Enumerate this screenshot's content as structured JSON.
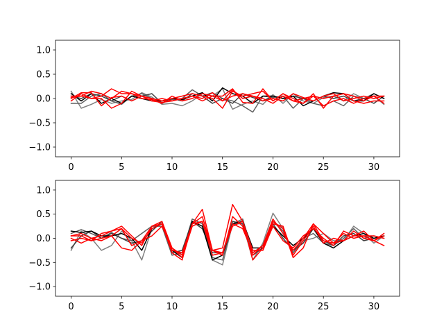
{
  "chart_data": [
    {
      "type": "line",
      "title": "",
      "xlabel": "",
      "ylabel": "",
      "xlim": [
        -1.55,
        32.55
      ],
      "ylim": [
        -1.2,
        1.2
      ],
      "xticks": [
        0,
        5,
        10,
        15,
        20,
        25,
        30
      ],
      "yticks": [
        -1.0,
        -0.5,
        0.0,
        0.5,
        1.0
      ],
      "xtick_labels": [
        "0",
        "5",
        "10",
        "15",
        "20",
        "25",
        "30"
      ],
      "ytick_labels": [
        "−1.0",
        "−0.5",
        "0.0",
        "0.5",
        "1.0"
      ],
      "grid": false,
      "x": [
        0,
        1,
        2,
        3,
        4,
        5,
        6,
        7,
        8,
        9,
        10,
        11,
        12,
        13,
        14,
        15,
        16,
        17,
        18,
        19,
        20,
        21,
        22,
        23,
        24,
        25,
        26,
        27,
        28,
        29,
        30,
        31
      ],
      "series": [
        {
          "color": "#808080",
          "values": [
            0.15,
            -0.2,
            -0.12,
            -0.02,
            -0.1,
            -0.05,
            -0.02,
            0.12,
            0.03,
            -0.12,
            -0.1,
            -0.15,
            -0.05,
            0.1,
            0.05,
            0.2,
            -0.22,
            -0.12,
            -0.05,
            -0.12,
            0.08,
            -0.1,
            0.1,
            -0.05,
            -0.1,
            0.02,
            0.05,
            -0.05,
            0.1,
            0.0,
            0.05,
            -0.12
          ]
        },
        {
          "color": "#606060",
          "values": [
            -0.1,
            -0.1,
            0.05,
            0.1,
            -0.05,
            -0.12,
            0.05,
            0.1,
            0.0,
            -0.05,
            -0.02,
            0.0,
            0.18,
            0.05,
            0.12,
            0.0,
            -0.05,
            -0.15,
            -0.28,
            0.05,
            0.02,
            0.05,
            -0.2,
            0.0,
            -0.1,
            -0.15,
            -0.05,
            -0.15,
            0.05,
            0.0,
            0.1,
            0.0
          ]
        },
        {
          "color": "#404040",
          "values": [
            0.05,
            0.0,
            0.1,
            0.05,
            -0.05,
            0.05,
            -0.05,
            0.05,
            0.1,
            -0.1,
            0.0,
            -0.05,
            0.1,
            0.05,
            -0.1,
            0.0,
            -0.1,
            0.1,
            0.02,
            -0.05,
            0.05,
            0.0,
            0.05,
            0.0,
            -0.05,
            0.05,
            0.0,
            0.05,
            -0.05,
            0.0,
            -0.1,
            0.05
          ]
        },
        {
          "color": "#000000",
          "values": [
            0.1,
            -0.05,
            0.1,
            -0.1,
            0.0,
            -0.1,
            0.05,
            0.0,
            -0.05,
            -0.05,
            0.0,
            -0.02,
            0.05,
            0.12,
            -0.05,
            0.22,
            0.1,
            0.05,
            -0.1,
            0.05,
            0.05,
            0.0,
            0.05,
            -0.15,
            -0.05,
            0.05,
            0.12,
            0.1,
            -0.05,
            -0.05,
            0.1,
            0.0
          ]
        },
        {
          "color": "#ff0000",
          "values": [
            0.02,
            0.05,
            0.15,
            0.1,
            0.0,
            0.15,
            0.1,
            0.05,
            0.0,
            -0.05,
            0.0,
            0.05,
            0.1,
            0.05,
            0.0,
            -0.2,
            0.15,
            0.05,
            0.1,
            0.15,
            -0.05,
            0.1,
            0.0,
            -0.1,
            0.05,
            0.0,
            0.05,
            0.1,
            0.05,
            -0.05,
            0.05,
            -0.1
          ]
        },
        {
          "color": "#ff0000",
          "values": [
            0.0,
            0.12,
            0.12,
            -0.15,
            0.02,
            0.05,
            -0.05,
            0.05,
            -0.05,
            -0.08,
            -0.05,
            0.0,
            0.05,
            0.0,
            0.12,
            -0.05,
            0.18,
            0.0,
            0.05,
            0.0,
            -0.1,
            0.05,
            -0.05,
            0.0,
            0.05,
            -0.15,
            -0.05,
            0.0,
            -0.1,
            0.0,
            0.05,
            0.05
          ]
        },
        {
          "color": "#ff0000",
          "values": [
            -0.05,
            0.1,
            0.0,
            0.05,
            0.2,
            0.1,
            0.1,
            0.0,
            -0.02,
            -0.1,
            0.05,
            -0.05,
            0.0,
            0.1,
            0.05,
            -0.05,
            0.05,
            0.1,
            0.05,
            -0.05,
            0.0,
            -0.05,
            0.1,
            0.02,
            -0.05,
            0.05,
            0.1,
            -0.05,
            0.0,
            0.05,
            0.0,
            0.05
          ]
        },
        {
          "color": "#ff0000",
          "values": [
            0.05,
            0.05,
            0.0,
            0.0,
            -0.2,
            -0.1,
            0.15,
            0.05,
            -0.05,
            0.0,
            -0.05,
            0.0,
            0.05,
            -0.05,
            0.05,
            0.05,
            0.2,
            -0.08,
            -0.1,
            0.2,
            -0.05,
            0.1,
            -0.05,
            -0.1,
            0.1,
            -0.2,
            0.05,
            0.1,
            -0.05,
            -0.1,
            -0.05,
            -0.05
          ]
        }
      ]
    },
    {
      "type": "line",
      "title": "",
      "xlabel": "",
      "ylabel": "",
      "xlim": [
        -1.55,
        32.55
      ],
      "ylim": [
        -1.2,
        1.2
      ],
      "xticks": [
        0,
        5,
        10,
        15,
        20,
        25,
        30
      ],
      "yticks": [
        -1.0,
        -0.5,
        0.0,
        0.5,
        1.0
      ],
      "xtick_labels": [
        "0",
        "5",
        "10",
        "15",
        "20",
        "25",
        "30"
      ],
      "ytick_labels": [
        "−1.0",
        "−0.5",
        "0.0",
        "0.5",
        "1.0"
      ],
      "grid": false,
      "x": [
        0,
        1,
        2,
        3,
        4,
        5,
        6,
        7,
        8,
        9,
        10,
        11,
        12,
        13,
        14,
        15,
        16,
        17,
        18,
        19,
        20,
        21,
        22,
        23,
        24,
        25,
        26,
        27,
        28,
        29,
        30,
        31
      ],
      "series": [
        {
          "color": "#808080",
          "values": [
            -0.25,
            0.15,
            0.0,
            -0.25,
            -0.15,
            0.15,
            -0.05,
            -0.45,
            0.2,
            0.3,
            -0.25,
            -0.3,
            0.25,
            0.35,
            -0.45,
            -0.55,
            0.3,
            0.3,
            -0.45,
            -0.1,
            0.52,
            0.2,
            -0.3,
            -0.05,
            0.0,
            0.1,
            -0.05,
            -0.05,
            0.25,
            0.1,
            -0.1,
            0.05
          ]
        },
        {
          "color": "#606060",
          "values": [
            0.1,
            0.18,
            0.1,
            0.0,
            0.12,
            0.0,
            -0.05,
            0.1,
            0.25,
            0.25,
            -0.35,
            -0.3,
            0.4,
            0.3,
            -0.4,
            -0.45,
            0.3,
            0.4,
            -0.3,
            -0.15,
            0.35,
            0.15,
            -0.3,
            0.0,
            0.1,
            -0.1,
            -0.15,
            0.0,
            0.2,
            0.0,
            0.05,
            0.0
          ]
        },
        {
          "color": "#404040",
          "values": [
            -0.2,
            0.05,
            0.15,
            0.0,
            0.1,
            0.0,
            -0.1,
            -0.05,
            0.15,
            0.35,
            -0.3,
            -0.25,
            0.35,
            0.2,
            -0.3,
            -0.3,
            0.35,
            0.3,
            -0.35,
            -0.2,
            0.3,
            0.0,
            -0.25,
            -0.1,
            0.2,
            -0.05,
            -0.15,
            0.05,
            0.1,
            -0.05,
            0.0,
            0.05
          ]
        },
        {
          "color": "#000000",
          "values": [
            0.15,
            0.12,
            0.15,
            0.05,
            0.05,
            0.1,
            0.0,
            -0.25,
            0.2,
            0.3,
            -0.25,
            -0.4,
            0.35,
            0.25,
            -0.45,
            -0.35,
            0.3,
            0.35,
            -0.2,
            -0.2,
            0.25,
            0.05,
            -0.15,
            0.0,
            0.2,
            -0.1,
            -0.2,
            -0.05,
            0.05,
            0.1,
            0.0,
            0.05
          ]
        },
        {
          "color": "#ff0000",
          "values": [
            0.0,
            -0.1,
            0.0,
            0.05,
            0.15,
            0.2,
            0.0,
            -0.1,
            0.2,
            0.3,
            -0.3,
            -0.45,
            0.3,
            0.45,
            -0.25,
            -0.2,
            0.7,
            0.35,
            -0.45,
            -0.2,
            0.3,
            0.25,
            -0.35,
            -0.05,
            0.25,
            -0.1,
            0.0,
            -0.05,
            0.15,
            0.0,
            -0.05,
            -0.15
          ]
        },
        {
          "color": "#ff0000",
          "values": [
            0.05,
            0.05,
            -0.05,
            0.1,
            0.15,
            0.25,
            0.05,
            -0.15,
            0.25,
            0.3,
            -0.25,
            -0.3,
            0.3,
            0.6,
            -0.25,
            -0.3,
            0.3,
            0.2,
            -0.3,
            -0.15,
            0.35,
            0.2,
            -0.4,
            -0.2,
            0.3,
            0.1,
            -0.1,
            -0.05,
            0.05,
            0.15,
            -0.05,
            0.1
          ]
        },
        {
          "color": "#ff0000",
          "values": [
            -0.05,
            0.0,
            -0.05,
            0.0,
            0.05,
            -0.2,
            -0.25,
            -0.05,
            0.25,
            0.35,
            -0.2,
            -0.35,
            0.3,
            0.35,
            -0.25,
            -0.35,
            0.45,
            0.25,
            -0.35,
            -0.15,
            0.4,
            0.1,
            -0.25,
            0.0,
            0.3,
            -0.05,
            -0.1,
            0.1,
            0.0,
            0.05,
            0.05,
            0.0
          ]
        },
        {
          "color": "#ff0000",
          "values": [
            0.05,
            0.1,
            0.0,
            -0.05,
            0.05,
            0.2,
            -0.15,
            -0.05,
            0.05,
            0.25,
            -0.2,
            -0.4,
            0.25,
            0.35,
            -0.35,
            -0.3,
            0.25,
            0.35,
            -0.25,
            -0.25,
            0.25,
            -0.05,
            -0.2,
            0.05,
            0.2,
            0.0,
            -0.15,
            0.15,
            0.05,
            0.05,
            -0.05,
            0.05
          ]
        }
      ]
    }
  ]
}
